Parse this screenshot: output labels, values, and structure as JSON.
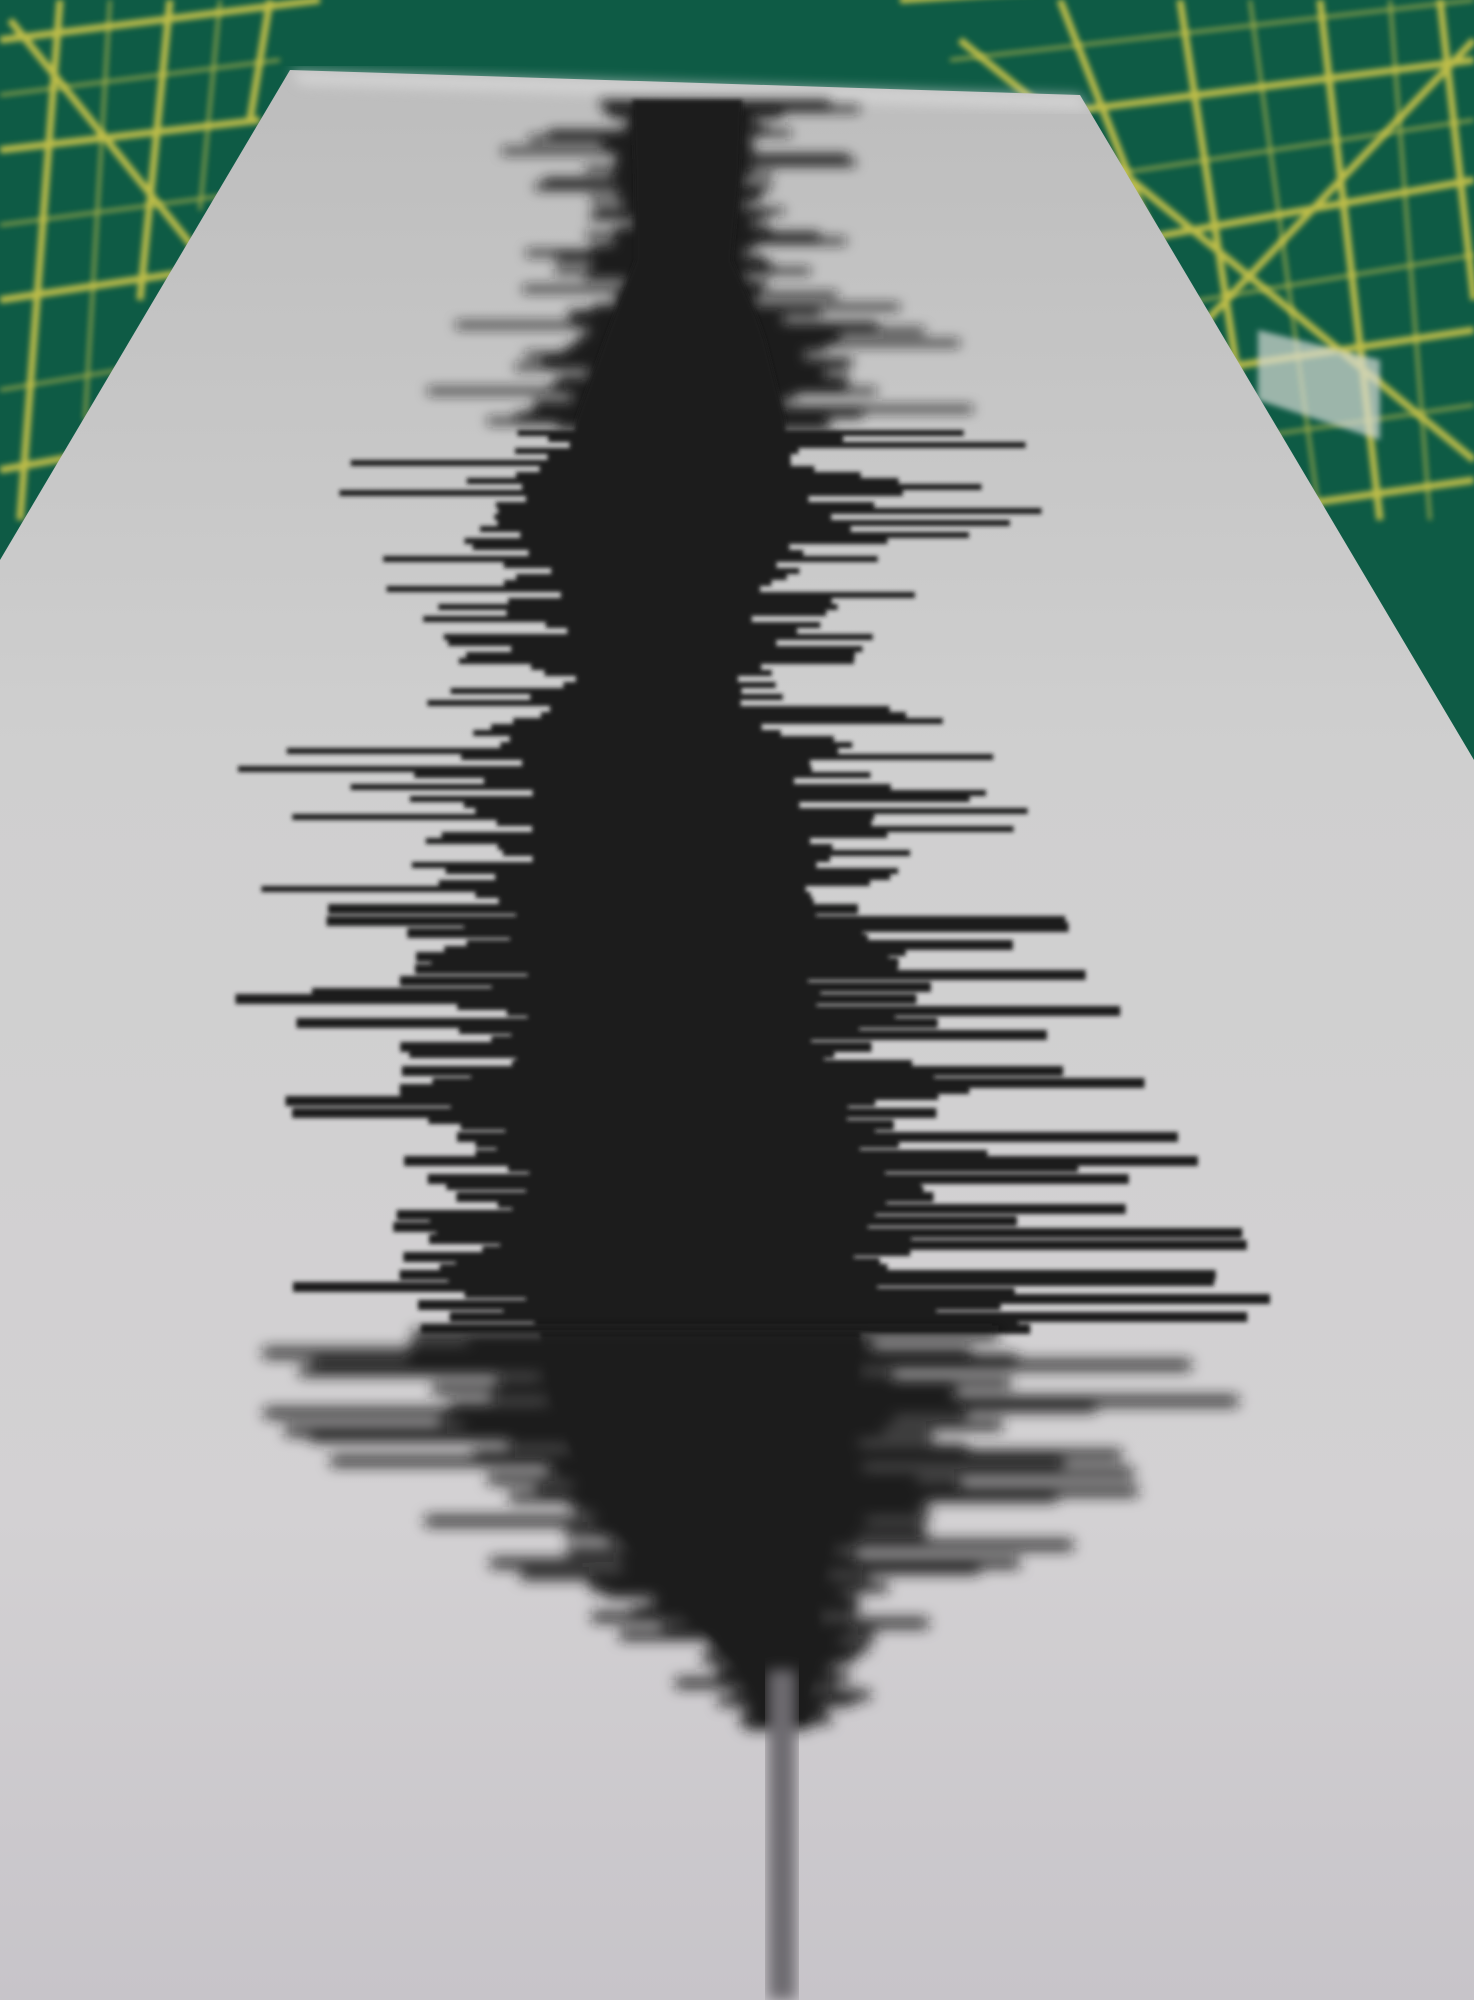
{
  "scene": {
    "description_free": true,
    "cutting_mat": {
      "base_color": "#0f5d47",
      "grid_color": "#c9c64a"
    },
    "card": {
      "paper_color": "#c9c9c9",
      "ink_color": "#1f1f1f"
    }
  },
  "printed_text": {
    "right_label": "",
    "left_label": ""
  }
}
